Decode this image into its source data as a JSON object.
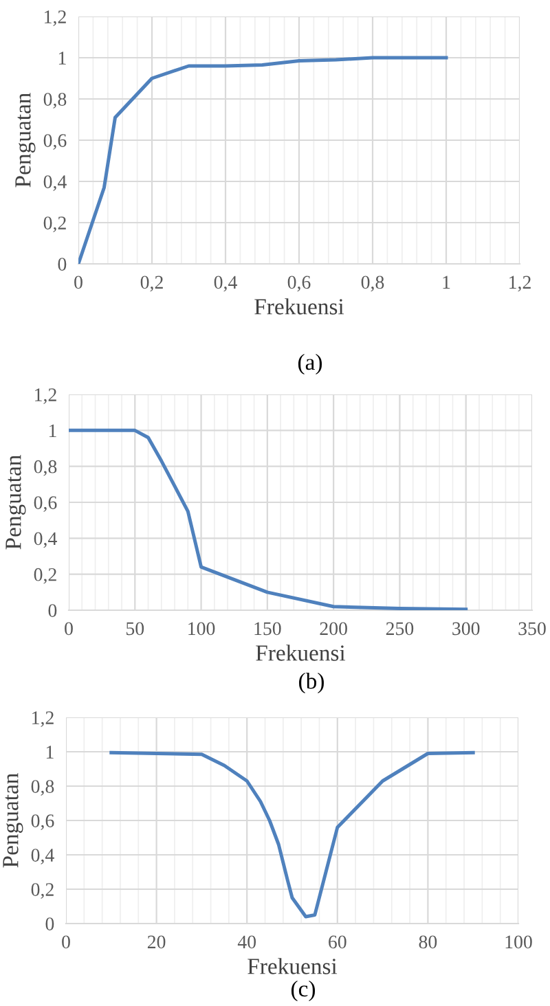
{
  "chart_data": [
    {
      "type": "line",
      "xlabel": "Frekuensi",
      "ylabel": "Penguatan",
      "annotations": [
        "(a)"
      ],
      "grid": true,
      "legend": false,
      "x": [
        0,
        0.07,
        0.1,
        0.2,
        0.3,
        0.4,
        0.5,
        0.6,
        0.7,
        0.8,
        0.9,
        1.0
      ],
      "series": [
        {
          "color": "#4f81bd",
          "values": [
            0,
            0.37,
            0.71,
            0.9,
            0.96,
            0.96,
            0.965,
            0.985,
            0.99,
            1,
            1,
            1
          ]
        }
      ],
      "xlim": [
        0,
        1.2
      ],
      "xticks": [
        0,
        {
          "value": 0.2,
          "label": "0,2"
        },
        {
          "value": 0.4,
          "label": "0,4"
        },
        {
          "value": 0.6,
          "label": "0,6"
        },
        {
          "value": 0.8,
          "label": "0,8"
        },
        1,
        {
          "value": 1.2,
          "label": "1,2"
        }
      ],
      "ylim": [
        0,
        1.2
      ],
      "yticks": [
        0,
        {
          "value": 0.2,
          "label": "0,2"
        },
        {
          "value": 0.4,
          "label": "0,4"
        },
        {
          "value": 0.6,
          "label": "0,6"
        },
        {
          "value": 0.8,
          "label": "0,8"
        },
        1,
        {
          "value": 1.2,
          "label": "1,2"
        }
      ]
    },
    {
      "type": "line",
      "xlabel": "Frekuensi",
      "ylabel": "Penguatan",
      "annotations": [
        "(b)"
      ],
      "grid": true,
      "legend": false,
      "x": [
        0,
        50,
        60,
        70,
        80,
        90,
        100,
        150,
        200,
        250,
        300
      ],
      "series": [
        {
          "color": "#4f81bd",
          "values": [
            1,
            1,
            0.96,
            0.83,
            0.69,
            0.55,
            0.24,
            0.1,
            0.02,
            0.01,
            0.005
          ]
        }
      ],
      "xlim": [
        0,
        350
      ],
      "xticks": [
        0,
        50,
        100,
        150,
        200,
        250,
        300,
        350
      ],
      "ylim": [
        0,
        1.2
      ],
      "yticks": [
        0,
        {
          "value": 0.2,
          "label": "0,2"
        },
        {
          "value": 0.4,
          "label": "0,4"
        },
        {
          "value": 0.6,
          "label": "0,6"
        },
        {
          "value": 0.8,
          "label": "0,8"
        },
        1,
        {
          "value": 1.2,
          "label": "1,2"
        }
      ]
    },
    {
      "type": "line",
      "xlabel": "Frekuensi",
      "ylabel": "Penguatan",
      "annotations": [
        "(c)"
      ],
      "grid": true,
      "legend": false,
      "x": [
        10,
        20,
        30,
        35,
        40,
        43,
        45,
        47,
        49,
        50,
        53,
        55,
        60,
        70,
        80,
        90
      ],
      "series": [
        {
          "color": "#4f81bd",
          "values": [
            0.995,
            0.99,
            0.985,
            0.92,
            0.83,
            0.71,
            0.6,
            0.46,
            0.25,
            0.15,
            0.04,
            0.05,
            0.56,
            0.83,
            0.99,
            0.995
          ]
        }
      ],
      "xlim": [
        0,
        100
      ],
      "xticks": [
        0,
        20,
        40,
        60,
        80,
        100
      ],
      "ylim": [
        0,
        1.2
      ],
      "yticks": [
        0,
        {
          "value": 0.2,
          "label": "0,2"
        },
        {
          "value": 0.4,
          "label": "0,4"
        },
        {
          "value": 0.6,
          "label": "0,6"
        },
        {
          "value": 0.8,
          "label": "0,8"
        },
        1,
        {
          "value": 1.2,
          "label": "1,2"
        }
      ]
    }
  ]
}
